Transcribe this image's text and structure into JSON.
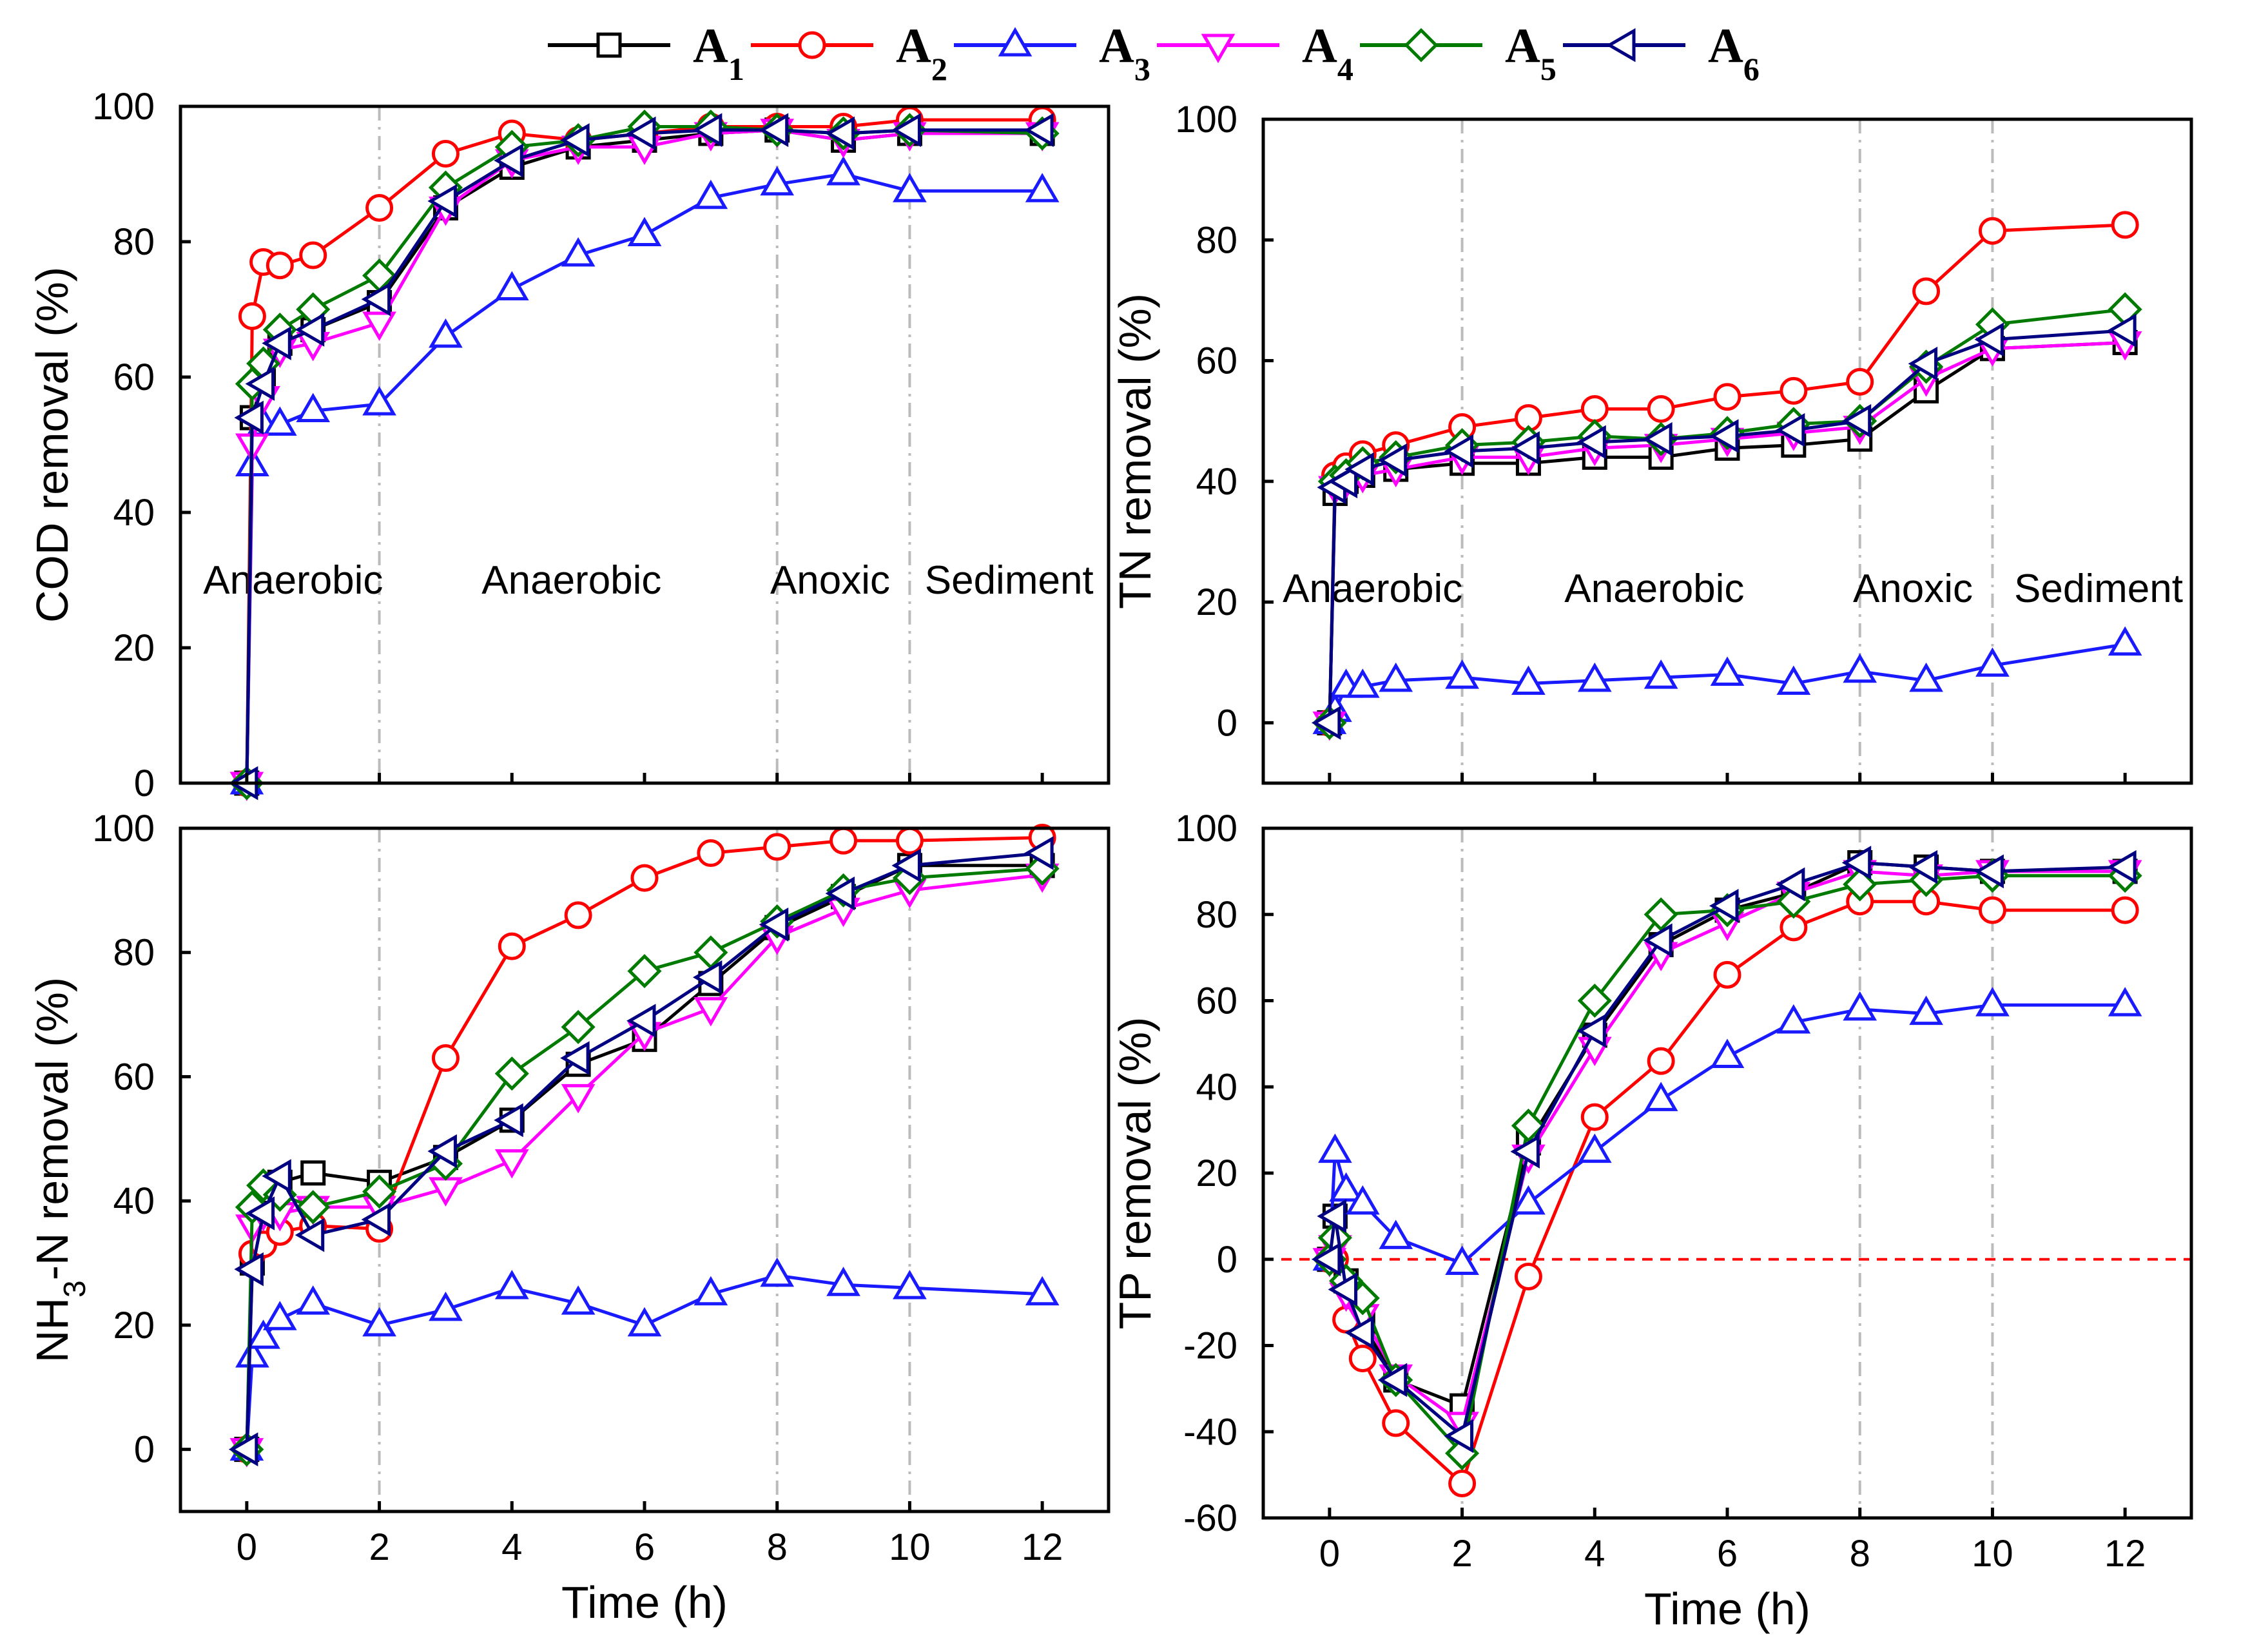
{
  "legend": [
    {
      "name": "A",
      "sub": "1",
      "color": "#000000",
      "marker": "square"
    },
    {
      "name": "A",
      "sub": "2",
      "color": "#ff0000",
      "marker": "circle"
    },
    {
      "name": "A",
      "sub": "3",
      "color": "#1a1aff",
      "marker": "triangle-up"
    },
    {
      "name": "A",
      "sub": "4",
      "color": "#ff00ff",
      "marker": "triangle-down"
    },
    {
      "name": "A",
      "sub": "5",
      "color": "#007a00",
      "marker": "diamond"
    },
    {
      "name": "A",
      "sub": "6",
      "color": "#000080",
      "marker": "triangle-left"
    }
  ],
  "chart_data": [
    {
      "id": "cod",
      "type": "line",
      "xlabel": "Time (h)",
      "ylabel": "COD removal (%)",
      "ylabel_parts": [],
      "xlim": [
        -1,
        13
      ],
      "ylim": [
        0,
        100
      ],
      "xticks": [
        0,
        2,
        4,
        6,
        8,
        10,
        12
      ],
      "yticks": [
        0,
        20,
        40,
        60,
        80,
        100
      ],
      "show_xticklabels": false,
      "phase_lines": [
        2,
        8,
        10
      ],
      "phases": [
        {
          "label": "Anaerobic",
          "x": 0.7,
          "y": 28
        },
        {
          "label": "Anaerobic",
          "x": 4.9,
          "y": 28
        },
        {
          "label": "Anoxic",
          "x": 8.8,
          "y": 28
        },
        {
          "label": "Sediment",
          "x": 11.5,
          "y": 28
        }
      ],
      "zero_line": false,
      "x": [
        0,
        0.083,
        0.25,
        0.5,
        1,
        2,
        3,
        4,
        5,
        6,
        7,
        8,
        9,
        10,
        12
      ],
      "series": [
        {
          "name": "A1",
          "values": [
            0,
            54,
            60,
            65,
            67,
            71,
            85,
            91,
            94,
            95,
            96,
            96.5,
            95,
            96,
            96
          ]
        },
        {
          "name": "A2",
          "values": [
            0,
            69,
            77,
            76.5,
            78,
            85,
            93,
            96,
            95,
            96,
            97,
            97,
            97,
            98,
            98
          ]
        },
        {
          "name": "A3",
          "values": [
            0,
            47,
            53,
            53,
            55,
            56,
            66,
            73,
            78,
            81,
            86.5,
            88.5,
            90,
            87.5,
            87.5
          ]
        },
        {
          "name": "A4",
          "values": [
            0,
            50,
            57,
            64,
            65,
            68,
            85,
            92,
            94,
            94,
            96,
            96.5,
            95,
            96,
            96
          ]
        },
        {
          "name": "A5",
          "values": [
            0,
            59,
            62,
            67,
            70,
            75,
            88,
            94,
            95,
            97,
            97,
            96.5,
            96,
            96.5,
            96
          ]
        },
        {
          "name": "A6",
          "values": [
            0,
            54,
            59,
            65,
            67,
            71.5,
            86,
            92,
            95,
            96,
            96.5,
            96.5,
            96,
            96.5,
            96.5
          ]
        }
      ]
    },
    {
      "id": "tn",
      "type": "line",
      "xlabel": "Time (h)",
      "ylabel": "TN removal (%)",
      "ylabel_parts": [],
      "xlim": [
        -1,
        13
      ],
      "ylim": [
        -10,
        100
      ],
      "xticks": [
        0,
        2,
        4,
        6,
        8,
        10,
        12
      ],
      "yticks": [
        0,
        20,
        40,
        60,
        80,
        100
      ],
      "show_xticklabels": false,
      "phase_lines": [
        2,
        8,
        10
      ],
      "phases": [
        {
          "label": "Anaerobic",
          "x": 0.65,
          "y": 20
        },
        {
          "label": "Anaerobic",
          "x": 4.9,
          "y": 20
        },
        {
          "label": "Anoxic",
          "x": 8.8,
          "y": 20
        },
        {
          "label": "Sediment",
          "x": 11.6,
          "y": 20
        }
      ],
      "zero_line": false,
      "x": [
        0,
        0.083,
        0.25,
        0.5,
        1,
        2,
        3,
        4,
        5,
        6,
        7,
        8,
        9,
        10,
        12
      ],
      "series": [
        {
          "name": "A1",
          "values": [
            0,
            38,
            40,
            41,
            42,
            43,
            43,
            44,
            44,
            45.5,
            46,
            47,
            55,
            62,
            63
          ]
        },
        {
          "name": "A2",
          "values": [
            0,
            41,
            42.5,
            44.5,
            46,
            49,
            50.5,
            52,
            52,
            54,
            55,
            56.5,
            71.5,
            81.5,
            82.5
          ]
        },
        {
          "name": "A3",
          "values": [
            0,
            2,
            6,
            6,
            7,
            7.5,
            6.5,
            7,
            7.5,
            8,
            6.5,
            8.5,
            7,
            9.5,
            13
          ]
        },
        {
          "name": "A4",
          "values": [
            0,
            39,
            40,
            41,
            42,
            44,
            44,
            45.5,
            46,
            47,
            48,
            49,
            57,
            62,
            63
          ]
        },
        {
          "name": "A5",
          "values": [
            0,
            40,
            41,
            43,
            44,
            46,
            46.5,
            47.5,
            47,
            48,
            49.5,
            50,
            59,
            66,
            68.5
          ]
        },
        {
          "name": "A6",
          "values": [
            0,
            39,
            40,
            42,
            43.5,
            45,
            45.5,
            46.5,
            47,
            47.5,
            48.5,
            50,
            59.5,
            63.5,
            65
          ]
        }
      ]
    },
    {
      "id": "nh3",
      "type": "line",
      "xlabel": "Time (h)",
      "ylabel": "NH3-N removal (%)",
      "ylabel_parts": [
        "NH",
        "3",
        "-N removal (%)"
      ],
      "xlim": [
        -1,
        13
      ],
      "ylim": [
        -10,
        100
      ],
      "xticks": [
        0,
        2,
        4,
        6,
        8,
        10,
        12
      ],
      "yticks": [
        0,
        20,
        40,
        60,
        80,
        100
      ],
      "show_xticklabels": true,
      "phase_lines": [
        2,
        8,
        10
      ],
      "phases": [],
      "zero_line": false,
      "x": [
        0,
        0.083,
        0.25,
        0.5,
        1,
        2,
        3,
        4,
        5,
        6,
        7,
        8,
        9,
        10,
        12
      ],
      "series": [
        {
          "name": "A1",
          "values": [
            0,
            30,
            38,
            43,
            44.5,
            43,
            47,
            53,
            62,
            66,
            75,
            84,
            89,
            94,
            94
          ]
        },
        {
          "name": "A2",
          "values": [
            0,
            31.5,
            33,
            35,
            36,
            35.5,
            63,
            81,
            86,
            92,
            96,
            97,
            98,
            98,
            98.5
          ]
        },
        {
          "name": "A3",
          "values": [
            0,
            15,
            18,
            21,
            23.5,
            20,
            22.5,
            26,
            23.5,
            20,
            25,
            28,
            26.5,
            26,
            25
          ]
        },
        {
          "name": "A4",
          "values": [
            0,
            36,
            38,
            38,
            39,
            39,
            42,
            46.5,
            57,
            67,
            71,
            82.5,
            87,
            90,
            92.5
          ]
        },
        {
          "name": "A5",
          "values": [
            0,
            39,
            42.5,
            41,
            39,
            41.5,
            46,
            60.5,
            68,
            77,
            80,
            85,
            90,
            92,
            93.5
          ]
        },
        {
          "name": "A6",
          "values": [
            0,
            29,
            38,
            44,
            34.5,
            37,
            48,
            53,
            63,
            69,
            76,
            84.5,
            89.5,
            94,
            96
          ]
        }
      ]
    },
    {
      "id": "tp",
      "type": "line",
      "xlabel": "Time (h)",
      "ylabel": "TP removal (%)",
      "ylabel_parts": [],
      "xlim": [
        -1,
        13
      ],
      "ylim": [
        -60,
        100
      ],
      "xticks": [
        0,
        2,
        4,
        6,
        8,
        10,
        12
      ],
      "yticks": [
        -60,
        -40,
        -20,
        0,
        20,
        40,
        60,
        80,
        100
      ],
      "show_xticklabels": true,
      "phase_lines": [
        2,
        8,
        10
      ],
      "phases": [],
      "zero_line": true,
      "x": [
        0,
        0.083,
        0.25,
        0.5,
        1,
        2,
        3,
        4,
        5,
        6,
        7,
        8,
        9,
        10,
        12
      ],
      "series": [
        {
          "name": "A1",
          "values": [
            0,
            10,
            -5,
            -15,
            -28,
            -34,
            27,
            52,
            73,
            81,
            85,
            92,
            91,
            90,
            90
          ]
        },
        {
          "name": "A2",
          "values": [
            0,
            0,
            -14,
            -23,
            -38,
            -52,
            -4,
            33,
            46,
            66,
            77,
            83,
            83,
            81,
            81
          ]
        },
        {
          "name": "A3",
          "values": [
            0,
            25,
            16,
            13,
            5,
            -1,
            13,
            25,
            37,
            47,
            55,
            58,
            57,
            59,
            59
          ]
        },
        {
          "name": "A4",
          "values": [
            0,
            3,
            -8,
            -13,
            -27,
            -38,
            24,
            49,
            71,
            78,
            85,
            90,
            89,
            90,
            90
          ]
        },
        {
          "name": "A5",
          "values": [
            0,
            5,
            -5,
            -9,
            -28,
            -45,
            31,
            60,
            80,
            81,
            83,
            87,
            88,
            89,
            89
          ]
        },
        {
          "name": "A6",
          "values": [
            0,
            10,
            -7,
            -17,
            -28,
            -41,
            25,
            53,
            74,
            82,
            87,
            92,
            91,
            90,
            91
          ]
        }
      ]
    }
  ]
}
